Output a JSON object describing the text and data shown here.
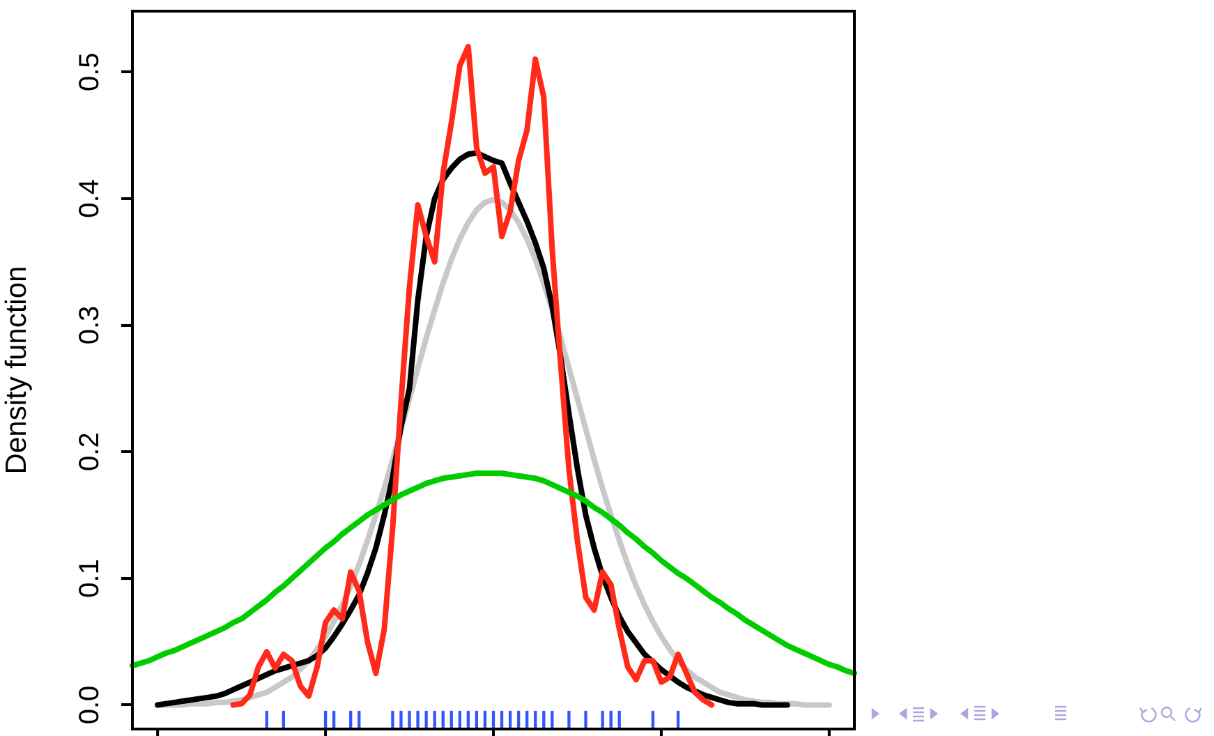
{
  "chart_data": {
    "type": "line",
    "ylabel": "Density function",
    "ylim": [
      -0.019,
      0.548
    ],
    "categories": [
      null,
      null,
      null,
      null,
      null,
      null,
      null,
      null,
      null,
      null,
      null,
      null,
      null,
      null,
      null,
      null,
      null,
      null,
      null,
      null,
      null,
      null,
      null,
      null,
      null,
      null,
      null,
      null,
      null,
      null,
      null,
      null,
      null,
      null,
      null,
      null,
      null,
      null,
      null,
      null,
      null,
      null,
      null,
      null,
      null,
      null,
      null,
      null,
      null,
      null,
      null,
      null,
      null,
      null,
      null,
      null,
      null,
      null,
      null,
      null,
      null,
      null,
      null,
      null,
      null,
      null,
      null,
      null,
      null,
      null,
      null,
      null,
      null,
      null,
      null,
      null,
      null,
      null,
      null,
      null,
      null,
      null,
      null,
      null,
      null,
      null,
      null
    ],
    "yticks": [
      {
        "value": 0,
        "label": "0.0"
      },
      {
        "value": 0.1,
        "label": "0.1"
      },
      {
        "value": 0.2,
        "label": "0.2"
      },
      {
        "value": 0.3,
        "label": "0.3"
      },
      {
        "value": 0.4,
        "label": "0.4"
      },
      {
        "value": 0.5,
        "label": "0.5"
      }
    ],
    "tick_labels": "y",
    "marker": "none",
    "line_style": "solid",
    "series": [
      {
        "color": "#00cc00",
        "values": [
          0.031,
          0.033,
          0.035,
          0.038,
          0.041,
          0.043,
          0.046,
          0.049,
          0.052,
          0.055,
          0.058,
          0.061,
          0.065,
          0.068,
          0.073,
          0.078,
          0.083,
          0.089,
          0.094,
          0.1,
          0.106,
          0.112,
          0.118,
          0.124,
          0.129,
          0.135,
          0.14,
          0.145,
          0.15,
          0.154,
          0.158,
          0.162,
          0.166,
          0.169,
          0.172,
          0.175,
          0.177,
          0.179,
          0.18,
          0.181,
          0.182,
          0.183,
          0.183,
          0.183,
          0.183,
          0.182,
          0.181,
          0.18,
          0.179,
          0.177,
          0.174,
          0.171,
          0.168,
          0.165,
          0.161,
          0.156,
          0.152,
          0.147,
          0.142,
          0.136,
          0.131,
          0.125,
          0.12,
          0.114,
          0.109,
          0.104,
          0.1,
          0.095,
          0.09,
          0.085,
          0.081,
          0.076,
          0.072,
          0.067,
          0.063,
          0.059,
          0.055,
          0.051,
          0.047,
          0.044,
          0.041,
          0.038,
          0.035,
          0.032,
          0.03,
          0.027,
          0.025
        ]
      },
      {
        "color": "#ff2a1a",
        "values": [
          null,
          null,
          null,
          null,
          null,
          null,
          null,
          null,
          null,
          null,
          null,
          null,
          0,
          0.001,
          0.008,
          0.03,
          0.042,
          0.029,
          0.04,
          0.035,
          0.015,
          0.007,
          0.03,
          0.065,
          0.075,
          0.068,
          0.105,
          0.09,
          0.05,
          0.025,
          0.06,
          0.14,
          0.24,
          0.33,
          0.395,
          0.37,
          0.35,
          0.42,
          0.46,
          0.505,
          0.52,
          0.44,
          0.42,
          0.425,
          0.37,
          0.39,
          0.43,
          0.454,
          0.51,
          0.48,
          0.36,
          0.27,
          0.186,
          0.13,
          0.085,
          0.075,
          0.105,
          0.095,
          0.06,
          0.03,
          0.02,
          0.035,
          0.035,
          0.018,
          0.022,
          0.04,
          0.025,
          0.01,
          0.004,
          0,
          null,
          null,
          null,
          null,
          null,
          null,
          null,
          null,
          null,
          null,
          null,
          null,
          null,
          null,
          null,
          null,
          null
        ]
      },
      {
        "color": "#000000",
        "values": [
          null,
          null,
          null,
          0,
          0.001,
          0.002,
          0.003,
          0.004,
          0.005,
          0.006,
          0.007,
          0.009,
          0.012,
          0.015,
          0.018,
          0.021,
          0.024,
          0.027,
          0.029,
          0.031,
          0.033,
          0.035,
          0.039,
          0.045,
          0.054,
          0.064,
          0.075,
          0.087,
          0.104,
          0.124,
          0.15,
          0.18,
          0.22,
          0.25,
          0.32,
          0.37,
          0.4,
          0.415,
          0.424,
          0.431,
          0.435,
          0.436,
          0.433,
          0.43,
          0.428,
          0.412,
          0.397,
          0.382,
          0.365,
          0.345,
          0.315,
          0.275,
          0.23,
          0.187,
          0.15,
          0.124,
          0.102,
          0.085,
          0.07,
          0.058,
          0.049,
          0.04,
          0.034,
          0.028,
          0.023,
          0.018,
          0.014,
          0.011,
          0.008,
          0.006,
          0.004,
          0.002,
          0.001,
          0.001,
          0.001,
          0,
          0,
          0,
          0,
          null,
          null,
          null,
          null,
          null,
          null,
          null,
          null
        ]
      },
      {
        "color": "#c8c8c8",
        "values": [
          null,
          null,
          null,
          0,
          0,
          0,
          0,
          0.001,
          0.001,
          0.001,
          0.002,
          0.002,
          0.003,
          0.004,
          0.006,
          0.008,
          0.01,
          0.014,
          0.018,
          0.022,
          0.028,
          0.035,
          0.044,
          0.054,
          0.066,
          0.079,
          0.094,
          0.111,
          0.13,
          0.15,
          0.171,
          0.194,
          0.218,
          0.242,
          0.266,
          0.29,
          0.312,
          0.333,
          0.352,
          0.368,
          0.381,
          0.391,
          0.397,
          0.399,
          0.397,
          0.391,
          0.381,
          0.368,
          0.352,
          0.333,
          0.312,
          0.29,
          0.266,
          0.242,
          0.218,
          0.194,
          0.171,
          0.15,
          0.13,
          0.111,
          0.094,
          0.079,
          0.066,
          0.054,
          0.044,
          0.035,
          0.028,
          0.022,
          0.018,
          0.014,
          0.01,
          0.008,
          0.006,
          0.004,
          0.003,
          0.002,
          0.002,
          0.001,
          0.001,
          0.001,
          0,
          0,
          0,
          0,
          null,
          null,
          null
        ]
      },
      {
        "type": "bar",
        "color": "#3355ff",
        "values": [
          null,
          null,
          null,
          null,
          null,
          null,
          null,
          null,
          null,
          null,
          null,
          null,
          null,
          null,
          null,
          null,
          0.013,
          null,
          0.013,
          null,
          null,
          null,
          null,
          0.013,
          0.013,
          null,
          0.013,
          0.013,
          null,
          null,
          null,
          0.013,
          0.013,
          0.013,
          0.013,
          0.013,
          0.013,
          0.013,
          0.013,
          0.013,
          0.013,
          0.013,
          0.013,
          0.013,
          0.013,
          0.013,
          0.013,
          0.013,
          0.013,
          0.013,
          0.013,
          null,
          0.013,
          null,
          0.013,
          null,
          0.013,
          0.013,
          0.013,
          null,
          null,
          null,
          0.013,
          null,
          null,
          0.013,
          null,
          null,
          null,
          null,
          null,
          null,
          null,
          null,
          null,
          null,
          null,
          null,
          null,
          null,
          null,
          null,
          null,
          null,
          null,
          null,
          null
        ],
        "base": [
          null,
          null,
          null,
          null,
          null,
          null,
          null,
          null,
          null,
          null,
          null,
          null,
          null,
          null,
          null,
          null,
          -0.018,
          null,
          -0.018,
          null,
          null,
          null,
          null,
          -0.018,
          -0.018,
          null,
          -0.018,
          -0.018,
          null,
          null,
          null,
          -0.018,
          -0.018,
          -0.018,
          -0.018,
          -0.018,
          -0.018,
          -0.018,
          -0.018,
          -0.018,
          -0.018,
          -0.018,
          -0.018,
          -0.018,
          -0.018,
          -0.018,
          -0.018,
          -0.018,
          -0.018,
          -0.018,
          -0.018,
          null,
          -0.018,
          null,
          -0.018,
          null,
          -0.018,
          -0.018,
          -0.018,
          null,
          null,
          null,
          -0.018,
          null,
          null,
          -0.018,
          null,
          null,
          null,
          null,
          null,
          null,
          null,
          null,
          null,
          null,
          null,
          null,
          null,
          null,
          null,
          null,
          null,
          null,
          null,
          null,
          null
        ]
      }
    ]
  }
}
